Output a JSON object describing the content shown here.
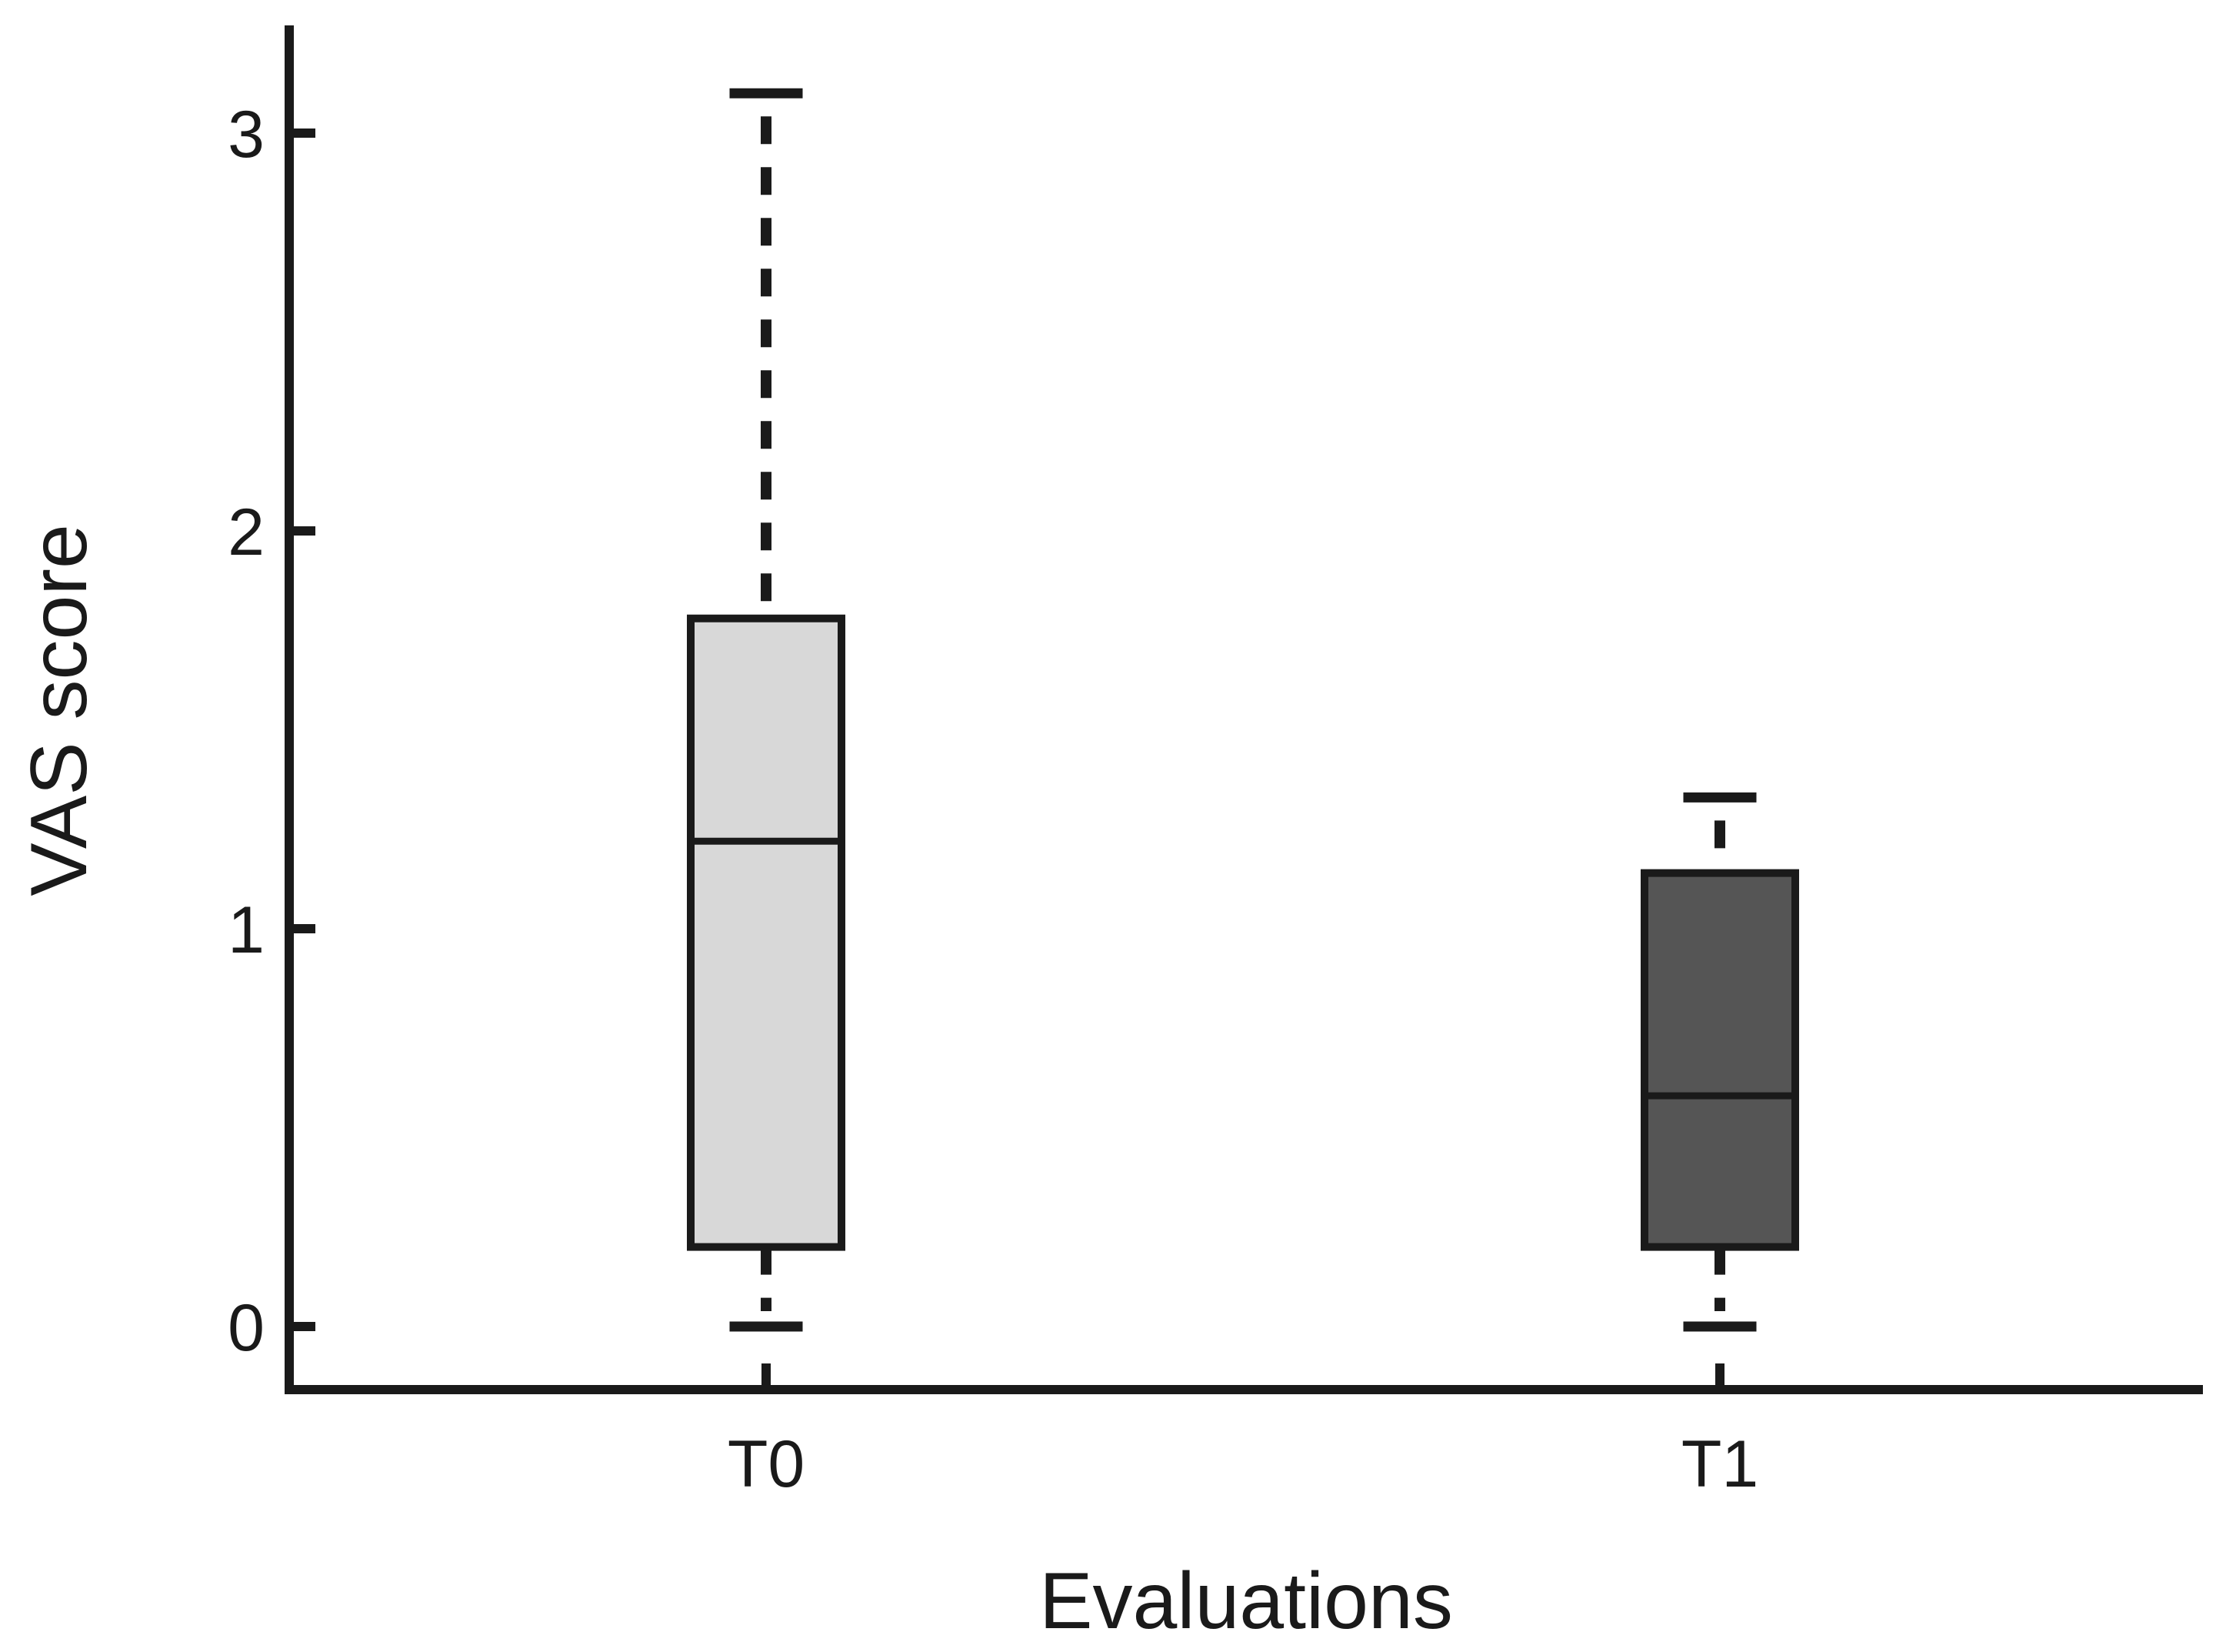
{
  "figure": {
    "background_color": "#ffffff",
    "line_color": "#1a1a1a",
    "text_color": "#1a1a1a"
  },
  "chart_data": {
    "type": "boxplot",
    "title": "",
    "xlabel": "Evaluations",
    "ylabel": "VAS score",
    "categories": [
      "T0",
      "T1"
    ],
    "yticks": [
      0,
      1,
      2,
      3
    ],
    "ylim": [
      -0.16,
      3.27
    ],
    "grid": false,
    "legend": false,
    "whisker_style": "dashed",
    "series": [
      {
        "name": "T0",
        "min": 0.0,
        "q1": 0.2,
        "median": 1.22,
        "q3": 1.78,
        "max": 3.1,
        "fill": "#d8d8d8"
      },
      {
        "name": "T1",
        "min": 0.0,
        "q1": 0.2,
        "median": 0.58,
        "q3": 1.14,
        "max": 1.33,
        "fill": "#555555"
      }
    ]
  }
}
